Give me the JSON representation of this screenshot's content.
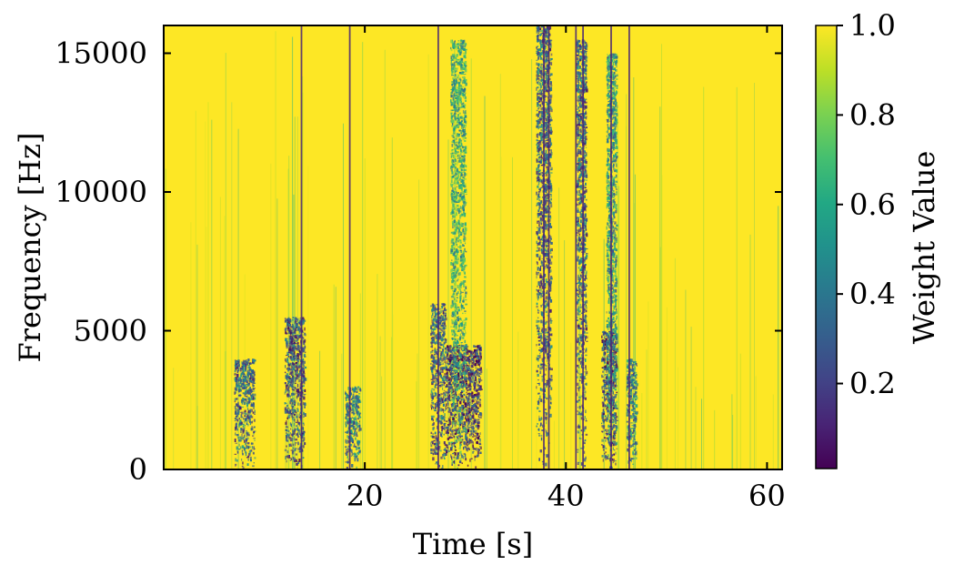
{
  "chart_data": {
    "type": "heatmap",
    "title": "",
    "xlabel": "Time [s]",
    "ylabel": "Frequency [Hz]",
    "xlim": [
      0,
      61.5
    ],
    "ylim": [
      0,
      16000
    ],
    "x_ticks": [
      20,
      40,
      60
    ],
    "x_tick_labels": [
      "20",
      "40",
      "60"
    ],
    "y_ticks": [
      0,
      5000,
      10000,
      15000
    ],
    "y_tick_labels": [
      "0",
      "5000",
      "10000",
      "15000"
    ],
    "dominant_value": 1.0,
    "vertical_dark_lines_s": [
      13.7,
      18.5,
      27.3,
      37.8,
      38.3,
      41.0,
      41.7,
      44.5,
      46.3
    ],
    "low_weight_regions": [
      {
        "t_start": 7,
        "t_end": 9,
        "f_max": 4000,
        "weight": 0.3
      },
      {
        "t_start": 12,
        "t_end": 14,
        "f_max": 5500,
        "weight": 0.25
      },
      {
        "t_start": 18,
        "t_end": 19.5,
        "f_max": 3000,
        "weight": 0.4
      },
      {
        "t_start": 26.5,
        "t_end": 28,
        "f_max": 6000,
        "weight": 0.3
      },
      {
        "t_start": 28,
        "t_end": 31.5,
        "f_max": 4500,
        "weight": 0.15
      },
      {
        "t_start": 28.5,
        "t_end": 30,
        "f_max": 15500,
        "weight": 0.6
      },
      {
        "t_start": 37,
        "t_end": 38.5,
        "f_max": 16000,
        "weight": 0.3
      },
      {
        "t_start": 41,
        "t_end": 42,
        "f_max": 15500,
        "weight": 0.3
      },
      {
        "t_start": 43.5,
        "t_end": 45,
        "f_max": 5000,
        "weight": 0.2
      },
      {
        "t_start": 44,
        "t_end": 45,
        "f_max": 15000,
        "weight": 0.5
      },
      {
        "t_start": 46,
        "t_end": 47,
        "f_max": 4000,
        "weight": 0.4
      }
    ],
    "colorbar": {
      "label": "Weight Value",
      "colormap": "viridis",
      "range": [
        0.01,
        1.0
      ],
      "ticks": [
        0.2,
        0.4,
        0.6,
        0.8,
        1.0
      ],
      "tick_labels": [
        "0.2",
        "0.4",
        "0.6",
        "0.8",
        "1.0"
      ]
    },
    "colors": {
      "high": "#fde725",
      "mid": "#21918c",
      "low": "#440154"
    }
  }
}
